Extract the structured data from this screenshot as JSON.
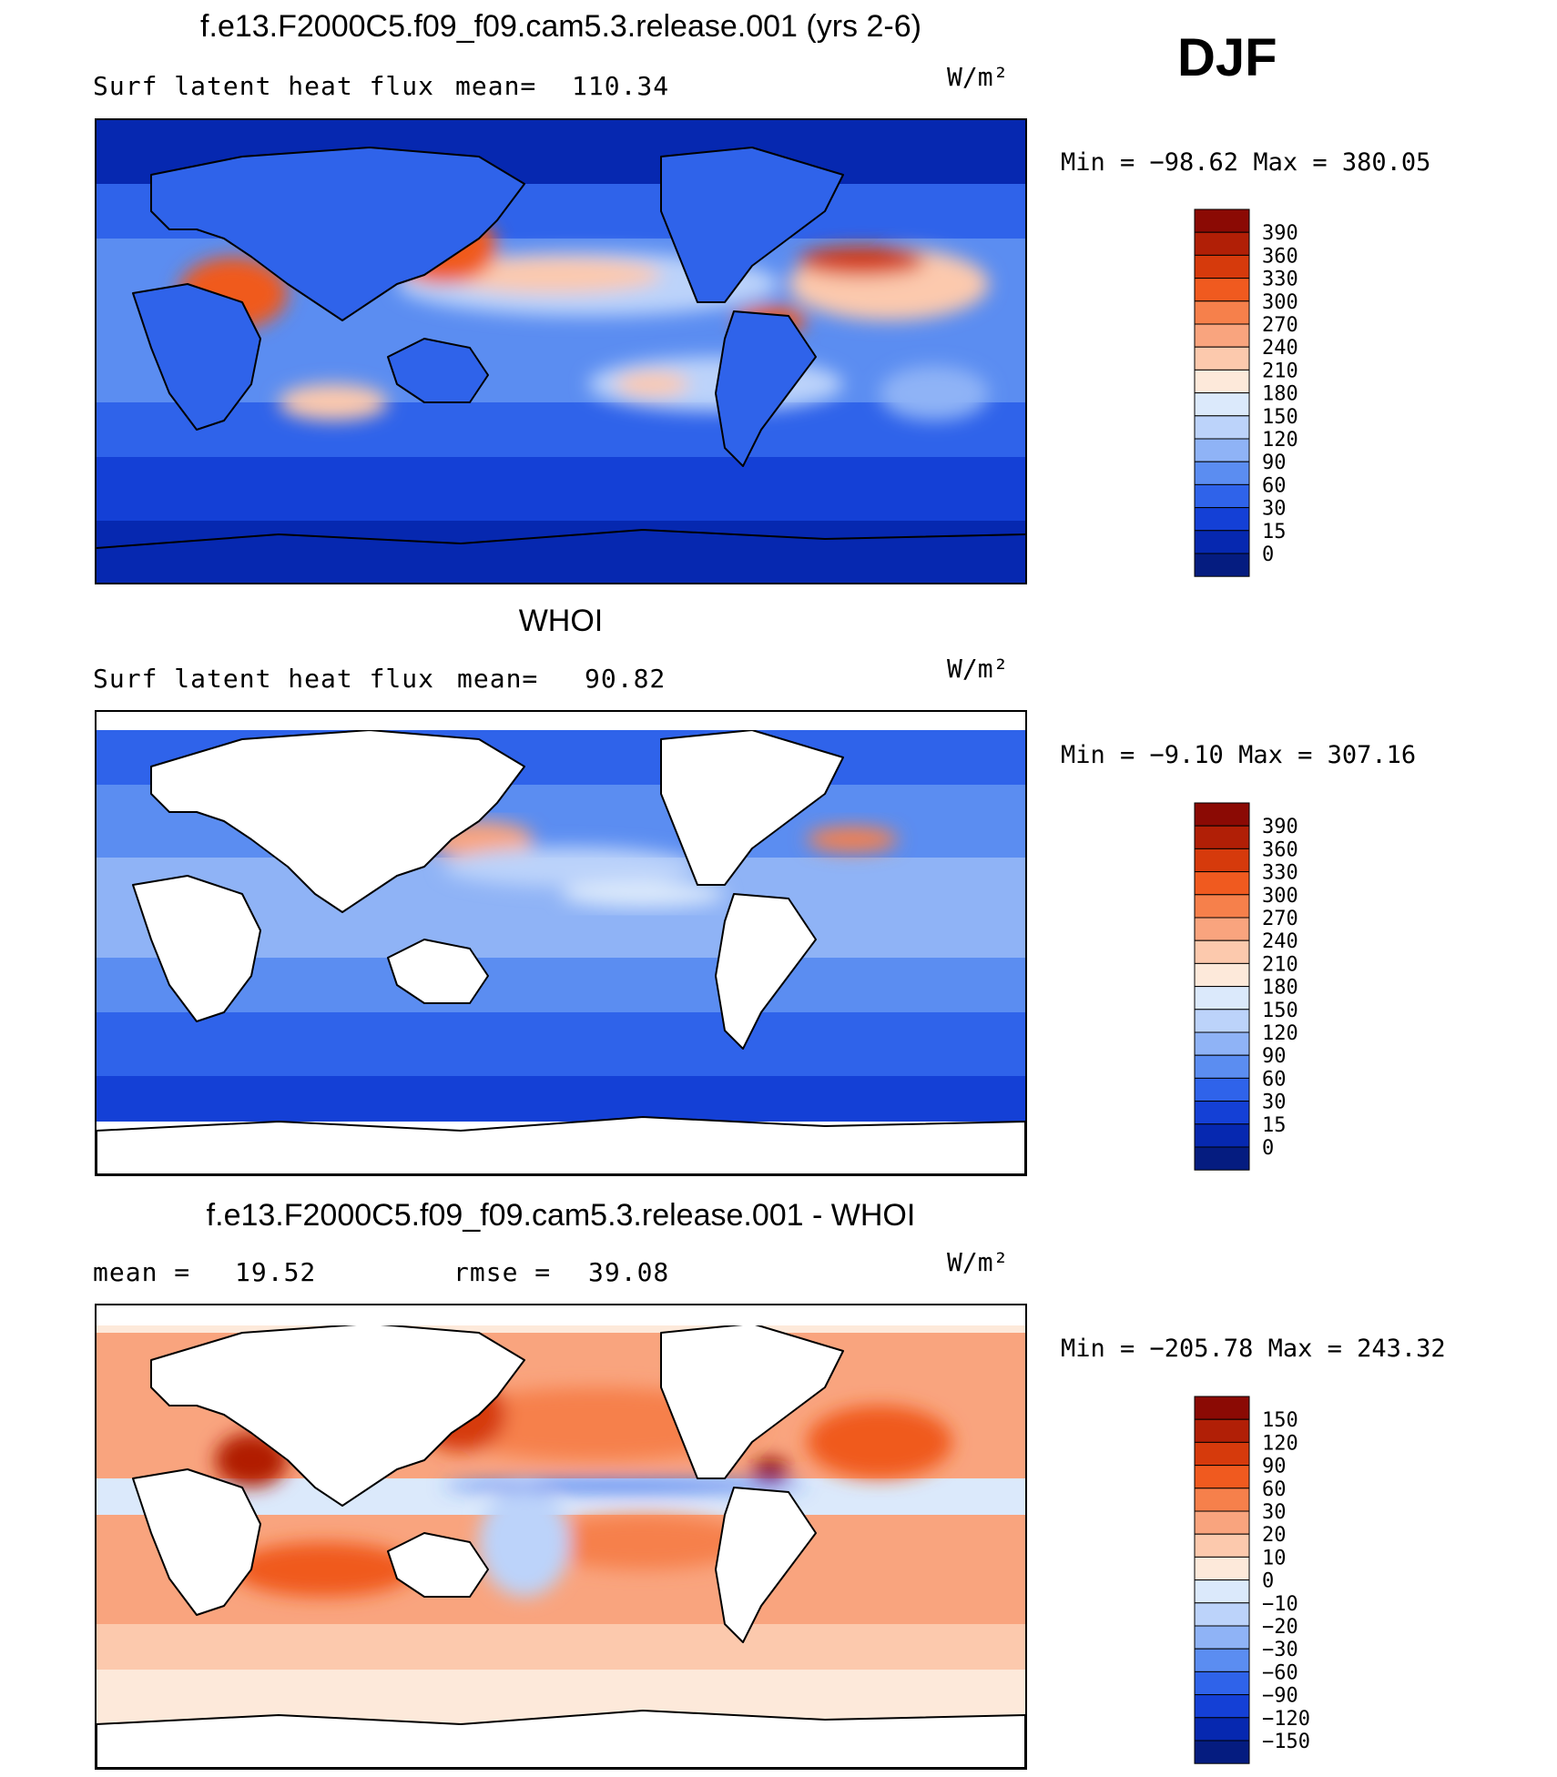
{
  "season": "DJF",
  "units": "W/m²",
  "panels": [
    {
      "title": "f.e13.F2000C5.f09_f09.cam5.3.release.001 (yrs 2-6)",
      "left_label": "Surf latent heat flux",
      "stat_label": "mean=",
      "stat_value": "110.34",
      "minmax": "Min = −98.62 Max = 380.05"
    },
    {
      "title": "WHOI",
      "left_label": "Surf latent heat flux",
      "stat_label": "mean=",
      "stat_value": "90.82",
      "minmax": "Min = −9.10 Max = 307.16"
    },
    {
      "title": "f.e13.F2000C5.f09_f09.cam5.3.release.001 - WHOI",
      "left_label": "mean =",
      "left_value": "19.52",
      "stat_label": "rmse =",
      "stat_value": "39.08",
      "minmax": "Min = −205.78 Max = 243.32"
    }
  ],
  "chart_data": [
    {
      "type": "heatmap",
      "map": "global contour map",
      "series_name": "",
      "colorbar_levels": [
        "390",
        "360",
        "330",
        "300",
        "270",
        "240",
        "210",
        "180",
        "150",
        "120",
        "90",
        "60",
        "30",
        "15",
        "0"
      ],
      "colorbar_colors": [
        "#8b0a04",
        "#b11f06",
        "#d63a0c",
        "#f05a1f",
        "#f6804b",
        "#f9a47e",
        "#fcc9ad",
        "#fde9da",
        "#dbe9fb",
        "#bcd3fa",
        "#8fb3f6",
        "#5b8df1",
        "#2f63ea",
        "#1440d6",
        "#0628b0",
        "#051c80"
      ],
      "mean": 110.34,
      "min": -98.62,
      "max": 380.05
    },
    {
      "type": "heatmap",
      "map": "global contour map",
      "series_name": "",
      "colorbar_levels": [
        "390",
        "360",
        "330",
        "300",
        "270",
        "240",
        "210",
        "180",
        "150",
        "120",
        "90",
        "60",
        "30",
        "15",
        "0"
      ],
      "colorbar_colors": [
        "#8b0a04",
        "#b11f06",
        "#d63a0c",
        "#f05a1f",
        "#f6804b",
        "#f9a47e",
        "#fcc9ad",
        "#fde9da",
        "#dbe9fb",
        "#bcd3fa",
        "#8fb3f6",
        "#5b8df1",
        "#2f63ea",
        "#1440d6",
        "#0628b0",
        "#051c80"
      ],
      "mean": 90.82,
      "min": -9.1,
      "max": 307.16
    },
    {
      "type": "heatmap",
      "map": "global contour map (difference)",
      "series_name": "",
      "colorbar_levels": [
        "150",
        "120",
        "90",
        "60",
        "30",
        "20",
        "10",
        "0",
        "−10",
        "−20",
        "−30",
        "−60",
        "−90",
        "−120",
        "−150"
      ],
      "colorbar_colors": [
        "#8b0a04",
        "#b11f06",
        "#d63a0c",
        "#f05a1f",
        "#f6804b",
        "#f9a47e",
        "#fcc9ad",
        "#fde9da",
        "#dbe9fb",
        "#bcd3fa",
        "#8fb3f6",
        "#5b8df1",
        "#2f63ea",
        "#1440d6",
        "#0628b0",
        "#051c80"
      ],
      "mean": 19.52,
      "rmse": 39.08,
      "min": -205.78,
      "max": 243.32
    }
  ]
}
